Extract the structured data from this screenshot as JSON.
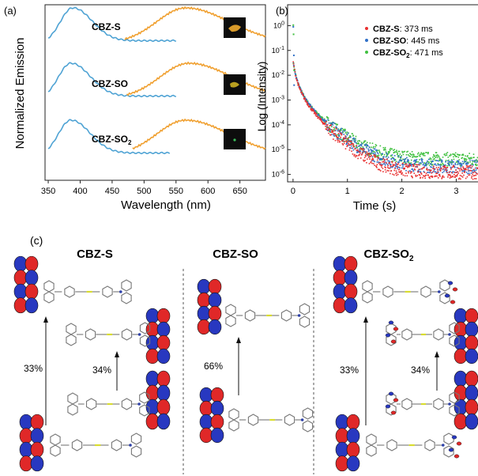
{
  "panel_labels": {
    "a": "(a)",
    "b": "(b)",
    "c": "(c)"
  },
  "colors": {
    "excitation": "#4fa3d4",
    "emission": "#f0a030",
    "cbz_s": "#e83030",
    "cbz_so": "#3070c8",
    "cbz_so2": "#40c040",
    "orbital_red": "#e02828",
    "orbital_blue": "#2838c0"
  },
  "panel_a": {
    "ylabel": "Normalized Emission",
    "xlabel": "Wavelength (nm)",
    "compounds": [
      {
        "label": "CBZ-S"
      },
      {
        "label": "CBZ-SO"
      },
      {
        "label": "CBZ-SO",
        "sub": "2"
      }
    ]
  },
  "panel_b": {
    "ylabel": "Log (Intensity)",
    "xlabel": "Time (s)",
    "legend": [
      {
        "name": "CBZ-S",
        "value": ": 373 ms"
      },
      {
        "name": "CBZ-SO",
        "value": ": 445 ms"
      },
      {
        "name": "CBZ-SO",
        "sub": "2",
        "value": ": 471 ms"
      }
    ]
  },
  "panel_c": {
    "columns": [
      {
        "title": "CBZ-S",
        "pct_left": "33%",
        "pct_right": "34%"
      },
      {
        "title": "CBZ-SO",
        "pct_left": "66%"
      },
      {
        "title": "CBZ-SO",
        "sub": "2",
        "pct_left": "33%",
        "pct_right": "34%"
      }
    ]
  },
  "chart_data": [
    {
      "type": "line",
      "title": "",
      "xlabel": "Wavelength (nm)",
      "ylabel": "Normalized Emission",
      "xlim": [
        345,
        690
      ],
      "x_ticks": [
        350,
        400,
        450,
        500,
        550,
        600,
        650
      ],
      "y_ticks_shown": false,
      "series": [
        {
          "name": "CBZ-S",
          "excitation": {
            "peak": 388,
            "x_end": 550
          },
          "emission": {
            "peak": 565,
            "x_start": 470
          }
        },
        {
          "name": "CBZ-SO",
          "excitation": {
            "peak": 385,
            "x_end": 550
          },
          "emission": {
            "peak": 570,
            "x_start": 473
          }
        },
        {
          "name": "CBZ-SO2",
          "excitation": {
            "peak": 385,
            "x_end": 540
          },
          "emission": {
            "peak": 565,
            "x_start": 482
          }
        }
      ]
    },
    {
      "type": "scatter",
      "title": "",
      "xlabel": "Time (s)",
      "ylabel": "Log (Intensity)",
      "xlim": [
        -0.1,
        3.4
      ],
      "ylim_log10": [
        -6.3,
        0.3
      ],
      "y_scale": "log",
      "x_ticks": [
        0,
        1,
        2,
        3
      ],
      "y_ticks": [
        "10^0",
        "10^-1",
        "10^-2",
        "10^-3",
        "10^-4",
        "10^-5",
        "10^-6"
      ],
      "legend_position": "top-right",
      "series": [
        {
          "name": "CBZ-S",
          "lifetime_ms": 373,
          "noise_floor": 1.2e-06
        },
        {
          "name": "CBZ-SO",
          "lifetime_ms": 445,
          "noise_floor": 2e-06
        },
        {
          "name": "CBZ-SO2",
          "lifetime_ms": 471,
          "noise_floor": 4e-06
        }
      ]
    }
  ]
}
